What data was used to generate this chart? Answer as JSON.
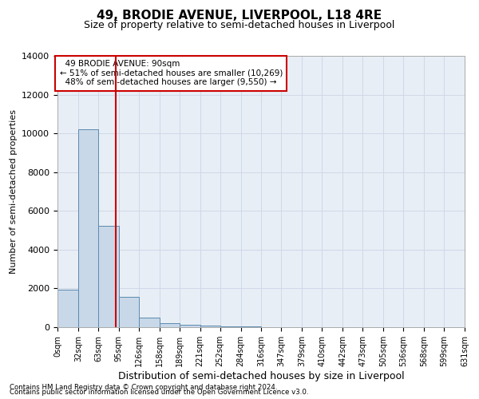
{
  "title": "49, BRODIE AVENUE, LIVERPOOL, L18 4RE",
  "subtitle": "Size of property relative to semi-detached houses in Liverpool",
  "xlabel": "Distribution of semi-detached houses by size in Liverpool",
  "ylabel": "Number of semi-detached properties",
  "footnote1": "Contains HM Land Registry data © Crown copyright and database right 2024.",
  "footnote2": "Contains public sector information licensed under the Open Government Licence v3.0.",
  "property_label": "49 BRODIE AVENUE: 90sqm",
  "pct_smaller": 51,
  "n_smaller": 10269,
  "pct_larger": 48,
  "n_larger": 9550,
  "bin_edges": [
    0,
    32,
    63,
    95,
    126,
    158,
    189,
    221,
    252,
    284,
    316,
    347,
    379,
    410,
    442,
    473,
    505,
    536,
    568,
    599,
    631
  ],
  "bin_labels": [
    "0sqm",
    "32sqm",
    "63sqm",
    "95sqm",
    "126sqm",
    "158sqm",
    "189sqm",
    "221sqm",
    "252sqm",
    "284sqm",
    "316sqm",
    "347sqm",
    "379sqm",
    "410sqm",
    "442sqm",
    "473sqm",
    "505sqm",
    "536sqm",
    "568sqm",
    "599sqm",
    "631sqm"
  ],
  "counts": [
    1950,
    10200,
    5250,
    1550,
    500,
    200,
    130,
    90,
    50,
    50,
    0,
    0,
    0,
    0,
    0,
    0,
    0,
    0,
    0,
    0
  ],
  "bar_color": "#c8d8e8",
  "bar_edge_color": "#5a8ab0",
  "vline_color": "#cc0000",
  "vline_x": 90,
  "annotation_box_color": "#cc0000",
  "ylim": [
    0,
    14000
  ],
  "yticks": [
    0,
    2000,
    4000,
    6000,
    8000,
    10000,
    12000,
    14000
  ],
  "grid_color": "#d0d8e8",
  "bg_color": "#e8eef5",
  "title_fontsize": 11,
  "subtitle_fontsize": 9
}
